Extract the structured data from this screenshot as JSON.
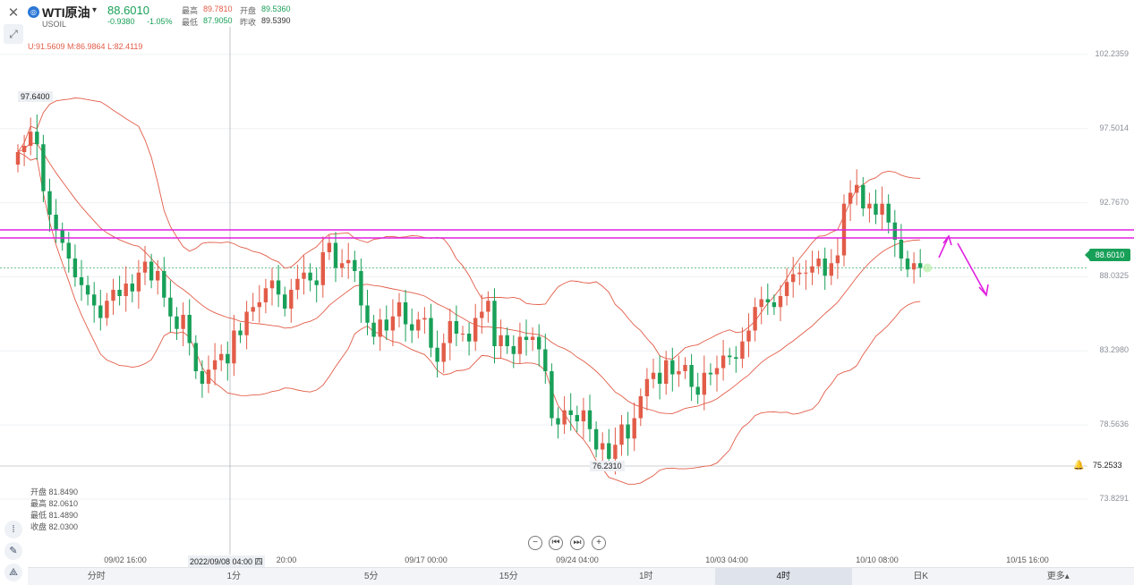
{
  "header": {
    "symbol_name": "WTI原油",
    "symbol_code": "USOIL",
    "last_price": "88.6010",
    "change": "-0.9380",
    "change_pct": "-1.05%",
    "high_label": "最高",
    "high_value": "89.7810",
    "open_label": "开盘",
    "open_value": "89.5360",
    "low_label": "最低",
    "low_value": "87.9050",
    "prev_close_label": "昨收",
    "prev_close_value": "89.5390"
  },
  "indicator": {
    "boll_text": "U:91.5609  M:86.9864  L:82.4119"
  },
  "callouts": {
    "high_marker": "97.6400",
    "low_marker": "76.2310"
  },
  "price_axis": [
    "102.2359",
    "97.5014",
    "92.7670",
    "88.0325",
    "83.2980",
    "78.5636",
    "73.8291"
  ],
  "current_price_tag": "88.6010",
  "crosshair_price": "75.2533",
  "time_axis": {
    "labels": [
      {
        "text": "09/02 16:00",
        "pos": 140
      },
      {
        "text": "20:00",
        "pos": 320
      },
      {
        "text": "09/17 00:00",
        "pos": 476
      },
      {
        "text": "09/24 04:00",
        "pos": 645
      },
      {
        "text": "10/03 04:00",
        "pos": 812
      },
      {
        "text": "10/10 08:00",
        "pos": 980
      },
      {
        "text": "10/15 16:00",
        "pos": 1148
      }
    ],
    "crosshair_time": "2022/09/08 04:00 四"
  },
  "ohlc_panel": {
    "open_label": "开盘",
    "open_value": "81.8490",
    "high_label": "最高",
    "high_value": "82.0610",
    "low_label": "最低",
    "low_value": "81.4890",
    "close_label": "收盘",
    "close_value": "82.0300"
  },
  "periods": [
    "分时",
    "1分",
    "5分",
    "15分",
    "1时",
    "4时",
    "日K",
    "更多▴"
  ],
  "active_period": "4时",
  "colors": {
    "up": "#e25c48",
    "down": "#18a058",
    "band": "#e25c48",
    "hline": "#e020e0",
    "accent": "#2b77d6"
  },
  "chart_data": {
    "type": "candlestick",
    "title": "WTI原油",
    "y_range": [
      72.0,
      104.0
    ],
    "y_ticks": [
      102.2359,
      97.5014,
      92.767,
      88.0325,
      83.298,
      78.5636,
      73.8291
    ],
    "close": [
      96.0,
      96.4,
      97.3,
      96.5,
      93.5,
      92.0,
      91.0,
      90.2,
      89.2,
      88.0,
      87.5,
      86.9,
      86.2,
      85.4,
      86.5,
      87.2,
      86.8,
      87.6,
      87.1,
      88.3,
      89.0,
      87.8,
      88.4,
      86.7,
      85.5,
      84.7,
      85.6,
      83.8,
      82.0,
      81.2,
      82.1,
      82.7,
      83.1,
      82.5,
      84.6,
      84.3,
      85.8,
      86.1,
      86.4,
      87.3,
      87.8,
      86.9,
      86.0,
      87.2,
      87.9,
      88.3,
      87.8,
      87.5,
      89.6,
      90.2,
      88.6,
      88.9,
      89.1,
      88.4,
      86.2,
      85.1,
      84.2,
      85.3,
      84.6,
      85.5,
      86.4,
      85.0,
      84.6,
      85.3,
      85.4,
      83.5,
      82.6,
      83.8,
      85.2,
      84.4,
      84.4,
      83.9,
      85.4,
      85.8,
      86.5,
      83.6,
      84.3,
      83.6,
      83.1,
      84.2,
      84.0,
      84.2,
      83.4,
      82.0,
      79.0,
      78.6,
      79.5,
      79.2,
      78.8,
      79.5,
      78.3,
      77.0,
      77.4,
      76.4,
      77.3,
      78.6,
      77.7,
      79.0,
      80.4,
      81.5,
      81.9,
      81.2,
      82.7,
      81.8,
      82.0,
      82.4,
      81.0,
      80.5,
      81.9,
      81.8,
      82.2,
      83.0,
      82.9,
      82.8,
      83.9,
      84.6,
      86.1,
      86.6,
      86.4,
      86.1,
      86.8,
      87.7,
      88.2,
      88.3,
      88.3,
      88.7,
      89.2,
      88.1,
      88.9,
      89.4,
      92.7,
      93.4,
      93.9,
      92.4,
      92.7,
      92.0,
      92.7,
      91.5,
      90.4,
      89.2,
      88.5,
      88.9,
      88.6
    ]
  }
}
